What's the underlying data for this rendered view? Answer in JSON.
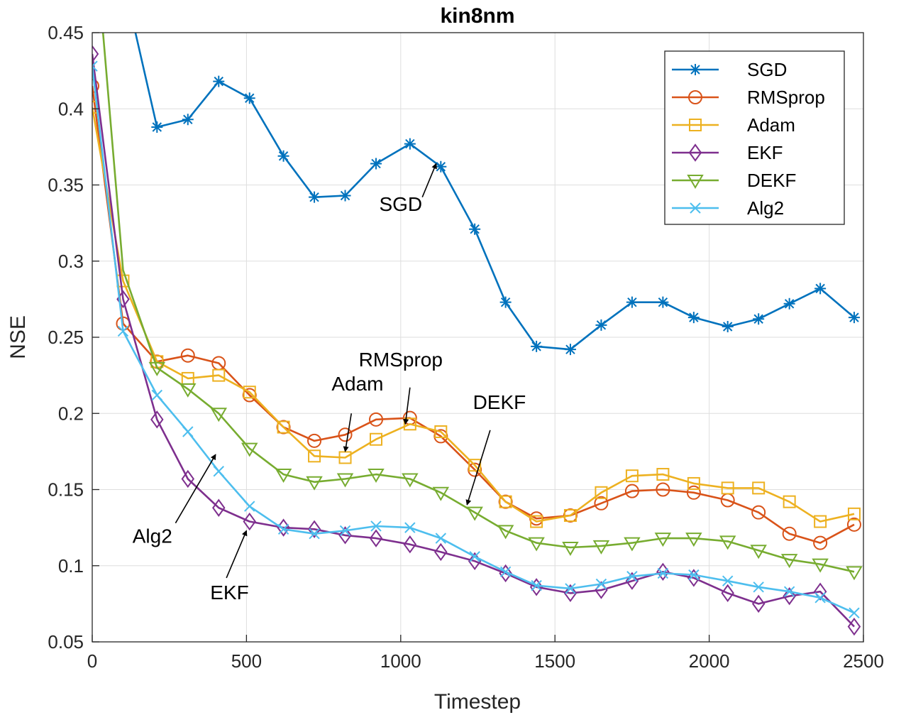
{
  "chart_data": {
    "type": "line",
    "title": "kin8nm",
    "xlabel": "Timestep",
    "ylabel": "NSE",
    "xlim": [
      0,
      2500
    ],
    "ylim": [
      0.05,
      0.45
    ],
    "xticks": [
      0,
      500,
      1000,
      1500,
      2000,
      2500
    ],
    "xtick_labels": [
      "0",
      "500",
      "1000",
      "1500",
      "2000",
      "2500"
    ],
    "yticks": [
      0.05,
      0.1,
      0.15,
      0.2,
      0.25,
      0.3,
      0.35,
      0.4,
      0.45
    ],
    "ytick_labels": [
      "0.05",
      "0.1",
      "0.15",
      "0.2",
      "0.25",
      "0.3",
      "0.35",
      "0.4",
      "0.45"
    ],
    "grid": true,
    "legend_position": "top-right",
    "series": [
      {
        "name": "SGD",
        "color": "#0072BD",
        "marker": "asterisk",
        "x": [
          210,
          310,
          410,
          510,
          620,
          720,
          820,
          920,
          1030,
          1130,
          1240,
          1340,
          1440,
          1550,
          1650,
          1750,
          1850,
          1950,
          2060,
          2160,
          2260,
          2360,
          2470
        ],
        "y": [
          0.388,
          0.393,
          0.418,
          0.407,
          0.369,
          0.342,
          0.343,
          0.364,
          0.377,
          0.362,
          0.321,
          0.273,
          0.244,
          0.242,
          0.258,
          0.273,
          0.273,
          0.263,
          0.257,
          0.262,
          0.272,
          0.282,
          0.263
        ],
        "line_only": [
          [
            140,
            0.45
          ],
          [
            210,
            0.388
          ]
        ]
      },
      {
        "name": "RMSprop",
        "color": "#D95319",
        "marker": "circle",
        "x": [
          0,
          100,
          210,
          310,
          410,
          510,
          620,
          720,
          820,
          920,
          1030,
          1130,
          1240,
          1340,
          1440,
          1550,
          1650,
          1750,
          1850,
          1950,
          2060,
          2160,
          2260,
          2360,
          2470
        ],
        "y": [
          0.415,
          0.259,
          0.234,
          0.238,
          0.233,
          0.212,
          0.191,
          0.182,
          0.186,
          0.196,
          0.197,
          0.185,
          0.163,
          0.142,
          0.131,
          0.133,
          0.141,
          0.149,
          0.15,
          0.148,
          0.143,
          0.135,
          0.121,
          0.115,
          0.127
        ]
      },
      {
        "name": "Adam",
        "color": "#EDB120",
        "marker": "square",
        "x": [
          0,
          100,
          210,
          310,
          410,
          510,
          620,
          720,
          820,
          920,
          1030,
          1130,
          1240,
          1340,
          1440,
          1550,
          1650,
          1750,
          1850,
          1950,
          2060,
          2160,
          2260,
          2360,
          2470
        ],
        "y": [
          0.401,
          0.287,
          0.234,
          0.223,
          0.225,
          0.214,
          0.191,
          0.172,
          0.171,
          0.183,
          0.193,
          0.188,
          0.166,
          0.142,
          0.129,
          0.133,
          0.148,
          0.159,
          0.16,
          0.154,
          0.151,
          0.151,
          0.142,
          0.129,
          0.134
        ]
      },
      {
        "name": "EKF",
        "color": "#7E2F8E",
        "marker": "diamond",
        "x": [
          0,
          100,
          210,
          310,
          410,
          510,
          620,
          720,
          820,
          920,
          1030,
          1130,
          1240,
          1340,
          1440,
          1550,
          1650,
          1750,
          1850,
          1950,
          2060,
          2160,
          2260,
          2360,
          2470
        ],
        "y": [
          0.436,
          0.275,
          0.196,
          0.157,
          0.138,
          0.129,
          0.125,
          0.124,
          0.12,
          0.118,
          0.114,
          0.109,
          0.103,
          0.095,
          0.086,
          0.082,
          0.084,
          0.09,
          0.096,
          0.092,
          0.082,
          0.075,
          0.08,
          0.083,
          0.06
        ]
      },
      {
        "name": "DEKF",
        "color": "#77AC30",
        "marker": "triangle-down",
        "x": [
          210,
          310,
          410,
          510,
          620,
          720,
          820,
          920,
          1030,
          1130,
          1240,
          1340,
          1440,
          1550,
          1650,
          1750,
          1850,
          1950,
          2060,
          2160,
          2260,
          2360,
          2470
        ],
        "y": [
          0.23,
          0.216,
          0.2,
          0.177,
          0.16,
          0.155,
          0.157,
          0.16,
          0.157,
          0.148,
          0.135,
          0.123,
          0.115,
          0.112,
          0.113,
          0.115,
          0.118,
          0.118,
          0.116,
          0.11,
          0.104,
          0.101,
          0.096
        ],
        "line_only": [
          [
            35,
            0.45
          ],
          [
            100,
            0.294
          ],
          [
            210,
            0.23
          ]
        ]
      },
      {
        "name": "Alg2",
        "color": "#4DBEEE",
        "marker": "x",
        "x": [
          0,
          100,
          210,
          310,
          410,
          510,
          620,
          720,
          820,
          920,
          1030,
          1130,
          1240,
          1340,
          1440,
          1550,
          1650,
          1750,
          1850,
          1950,
          2060,
          2160,
          2260,
          2360,
          2470
        ],
        "y": [
          0.428,
          0.254,
          0.212,
          0.188,
          0.162,
          0.139,
          0.124,
          0.121,
          0.123,
          0.126,
          0.125,
          0.118,
          0.106,
          0.096,
          0.087,
          0.085,
          0.088,
          0.093,
          0.095,
          0.094,
          0.09,
          0.086,
          0.083,
          0.079,
          0.069
        ]
      }
    ],
    "annotations": [
      {
        "text": "SGD",
        "label_x": 1000,
        "label_y": 0.333,
        "arrow_from": [
          1070,
          0.342
        ],
        "arrow_to": [
          1115,
          0.364
        ]
      },
      {
        "text": "Adam",
        "label_x": 860,
        "label_y": 0.215,
        "arrow_from": [
          840,
          0.2
        ],
        "arrow_to": [
          820,
          0.175
        ]
      },
      {
        "text": "RMSprop",
        "label_x": 1000,
        "label_y": 0.231,
        "arrow_from": [
          1030,
          0.217
        ],
        "arrow_to": [
          1015,
          0.193
        ]
      },
      {
        "text": "DEKF",
        "label_x": 1320,
        "label_y": 0.203,
        "arrow_from": [
          1290,
          0.189
        ],
        "arrow_to": [
          1215,
          0.14
        ]
      },
      {
        "text": "Alg2",
        "label_x": 195,
        "label_y": 0.115,
        "arrow_from": [
          270,
          0.128
        ],
        "arrow_to": [
          400,
          0.173
        ]
      },
      {
        "text": "EKF",
        "label_x": 445,
        "label_y": 0.078,
        "arrow_from": [
          435,
          0.092
        ],
        "arrow_to": [
          500,
          0.123
        ]
      }
    ]
  }
}
